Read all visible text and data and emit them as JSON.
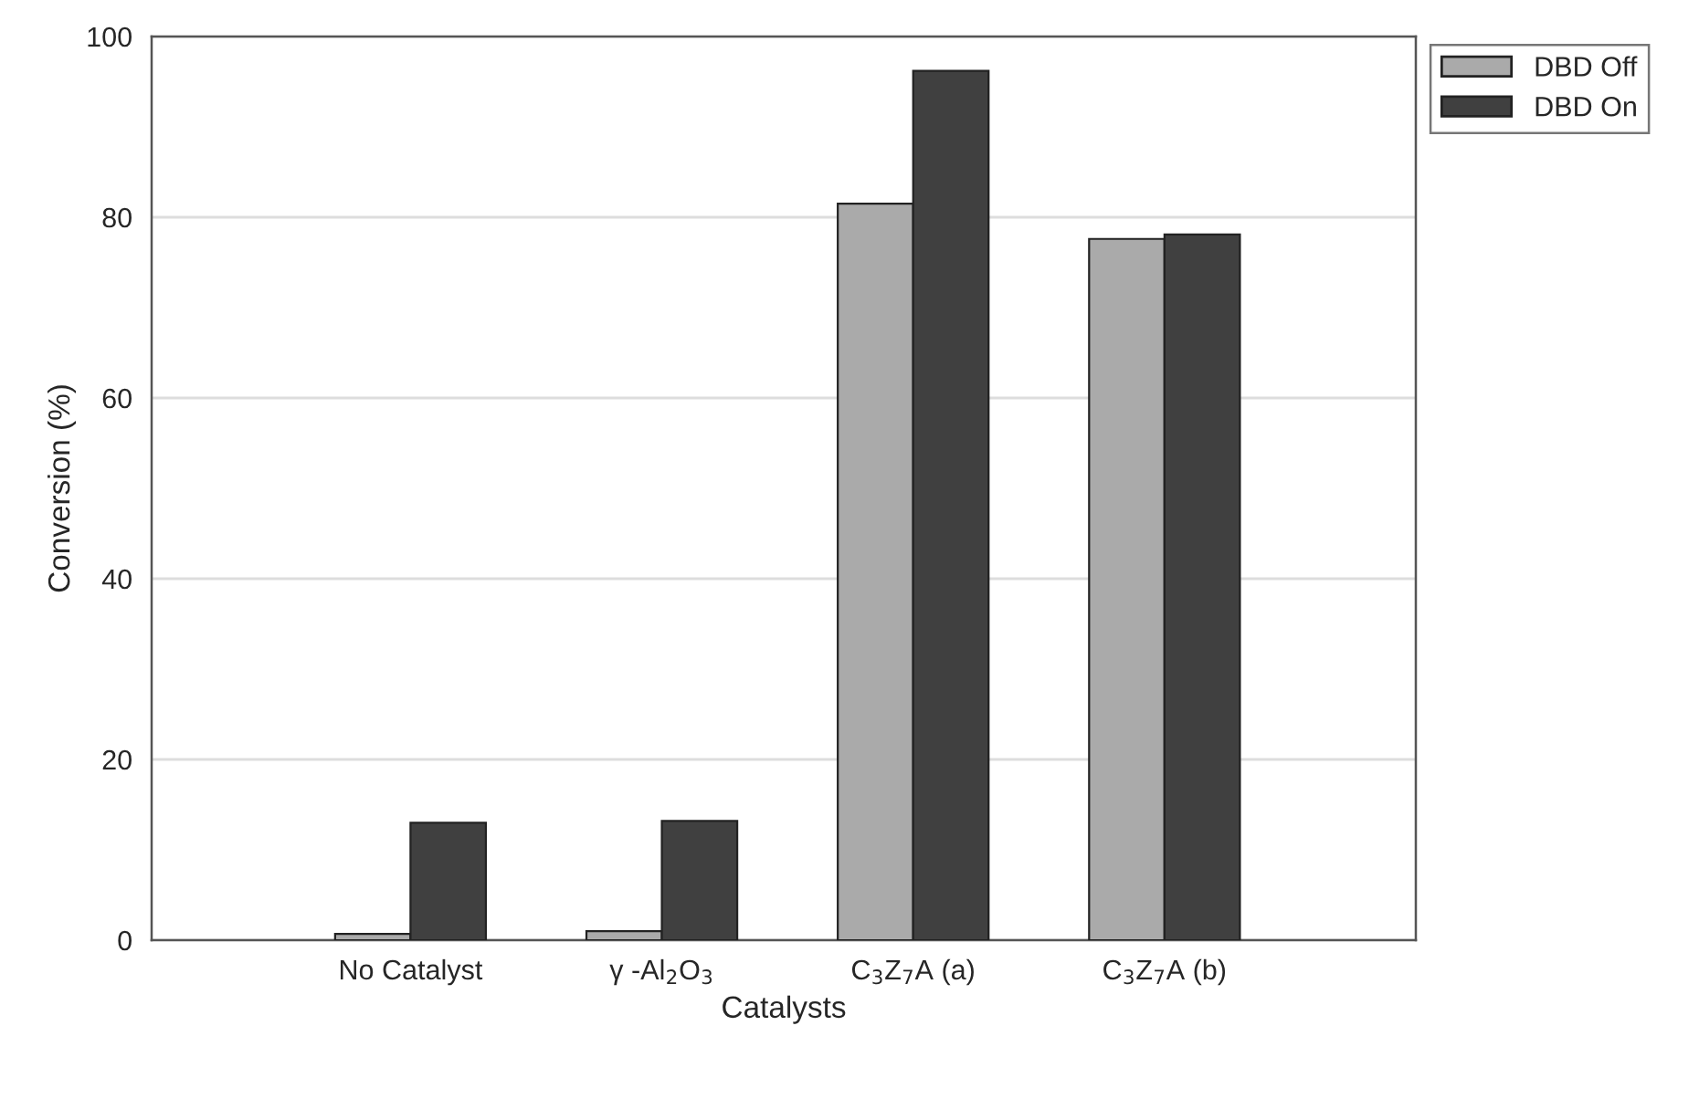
{
  "chart_data": {
    "type": "bar",
    "xlabel": "Catalysts",
    "ylabel": "Conversion (%)",
    "categories": [
      "No Catalyst",
      "γ -Al$_{2}$O$_{3}$",
      "C$_{3}$Z$_{7}$A (a)",
      "C$_{3}$Z$_{7}$A (b)"
    ],
    "series": [
      {
        "name": "DBD Off",
        "color": "#aaaaaa",
        "values": [
          0.7,
          1.0,
          81.5,
          77.6
        ]
      },
      {
        "name": "DBD On",
        "color": "#404040",
        "values": [
          13.0,
          13.2,
          96.2,
          78.1
        ]
      }
    ],
    "ylim": [
      0,
      100
    ],
    "yticks": [
      0,
      20,
      40,
      60,
      80,
      100
    ],
    "grid": "y",
    "legend": "top right"
  }
}
